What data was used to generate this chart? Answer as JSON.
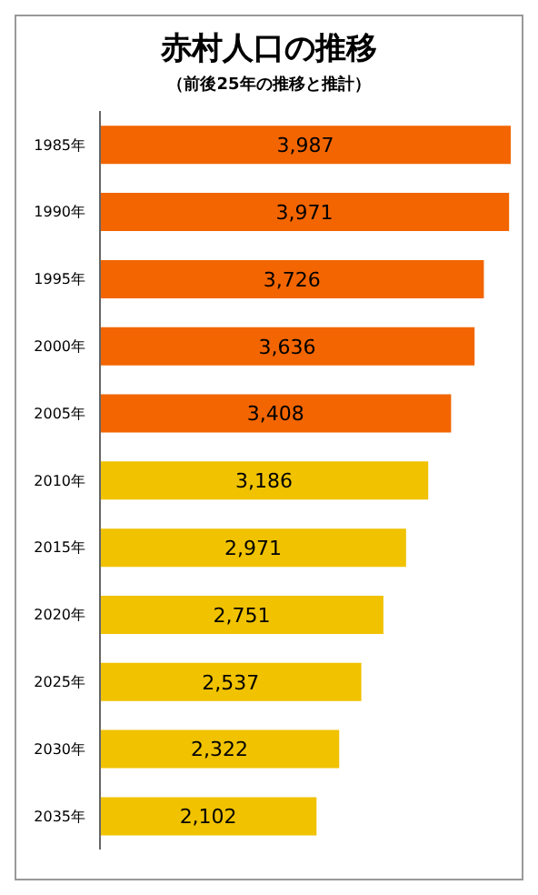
{
  "chart_data": {
    "type": "bar",
    "orientation": "horizontal",
    "title": "赤村人口の推移",
    "subtitle": "（前後25年の推移と推計）",
    "categories": [
      "1985年",
      "1990年",
      "1995年",
      "2000年",
      "2005年",
      "2010年",
      "2015年",
      "2020年",
      "2025年",
      "2030年",
      "2035年"
    ],
    "values": [
      3987,
      3971,
      3726,
      3636,
      3408,
      3186,
      2971,
      2751,
      2537,
      2322,
      2102
    ],
    "colors": [
      "#f26500",
      "#f26500",
      "#f26500",
      "#f26500",
      "#f26500",
      "#f0c200",
      "#f0c200",
      "#f0c200",
      "#f0c200",
      "#f0c200",
      "#f0c200"
    ],
    "value_labels": [
      "3,987",
      "3,971",
      "3,726",
      "3,636",
      "3,408",
      "3,186",
      "2,971",
      "2,751",
      "2,537",
      "2,322",
      "2,102"
    ],
    "grid": false,
    "legend": false
  }
}
